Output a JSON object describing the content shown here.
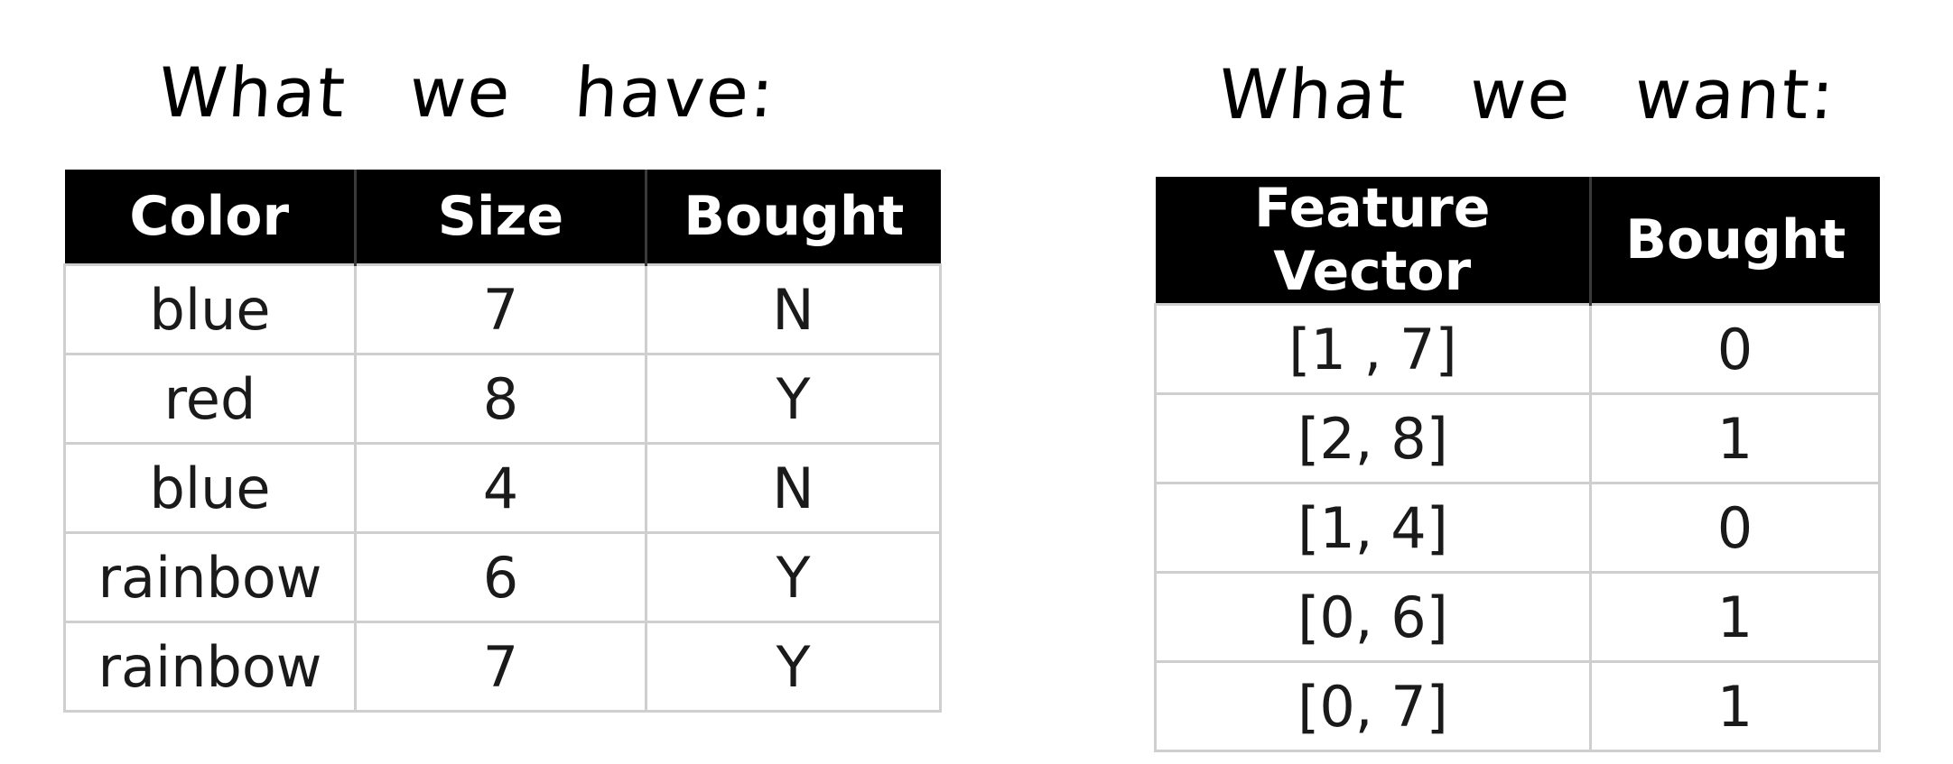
{
  "left": {
    "heading": [
      "What",
      "we",
      "have:"
    ],
    "table": {
      "headers": [
        "Color",
        "Size",
        "Bought"
      ],
      "rows": [
        [
          "blue",
          "7",
          "N"
        ],
        [
          "red",
          "8",
          "Y"
        ],
        [
          "blue",
          "4",
          "N"
        ],
        [
          "rainbow",
          "6",
          "Y"
        ],
        [
          "rainbow",
          "7",
          "Y"
        ]
      ]
    }
  },
  "right": {
    "heading": [
      "What",
      "we",
      "want:"
    ],
    "table": {
      "headers": [
        "Feature Vector",
        "Bought"
      ],
      "rows": [
        [
          "[1 , 7]",
          "0"
        ],
        [
          "[2, 8]",
          "1"
        ],
        [
          "[1, 4]",
          "0"
        ],
        [
          "[0, 6]",
          "1"
        ],
        [
          "[0, 7]",
          "1"
        ]
      ]
    }
  },
  "colors": {
    "header_bg": "#000000",
    "header_text": "#ffffff",
    "grid_line": "#cfcfcf"
  }
}
